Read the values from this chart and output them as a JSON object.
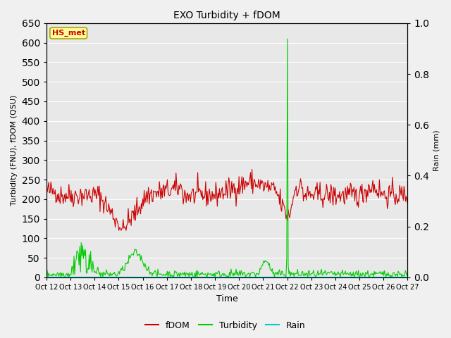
{
  "title": "EXO Turbidity + fDOM",
  "xlabel": "Time",
  "ylabel_left": "Turbidity (FNU), fDOM (QSU)",
  "ylabel_right": "Rain (mm)",
  "annotation_text": "HS_met",
  "x_tick_labels": [
    "Oct 12",
    "Oct 13",
    "Oct 14",
    "Oct 15",
    "Oct 16",
    "Oct 17",
    "Oct 18",
    "Oct 19",
    "Oct 20",
    "Oct 21",
    "Oct 22",
    "Oct 23",
    "Oct 24",
    "Oct 25",
    "Oct 26",
    "Oct 27"
  ],
  "ylim_left": [
    0,
    650
  ],
  "ylim_right": [
    0,
    1.0
  ],
  "yticks_left": [
    0,
    50,
    100,
    150,
    200,
    250,
    300,
    350,
    400,
    450,
    500,
    550,
    600,
    650
  ],
  "yticks_right": [
    0.0,
    0.2,
    0.4,
    0.6,
    0.8,
    1.0
  ],
  "fdom_color": "#cc0000",
  "turbidity_color": "#00cc00",
  "rain_color": "#00cccc",
  "plot_bg_color": "#e8e8e8",
  "fig_bg_color": "#f0f0f0",
  "grid_color": "#ffffff",
  "annotation_bg": "#ffff99",
  "annotation_border": "#aaa800",
  "legend_labels": [
    "fDOM",
    "Turbidity",
    "Rain"
  ],
  "n_points": 500
}
